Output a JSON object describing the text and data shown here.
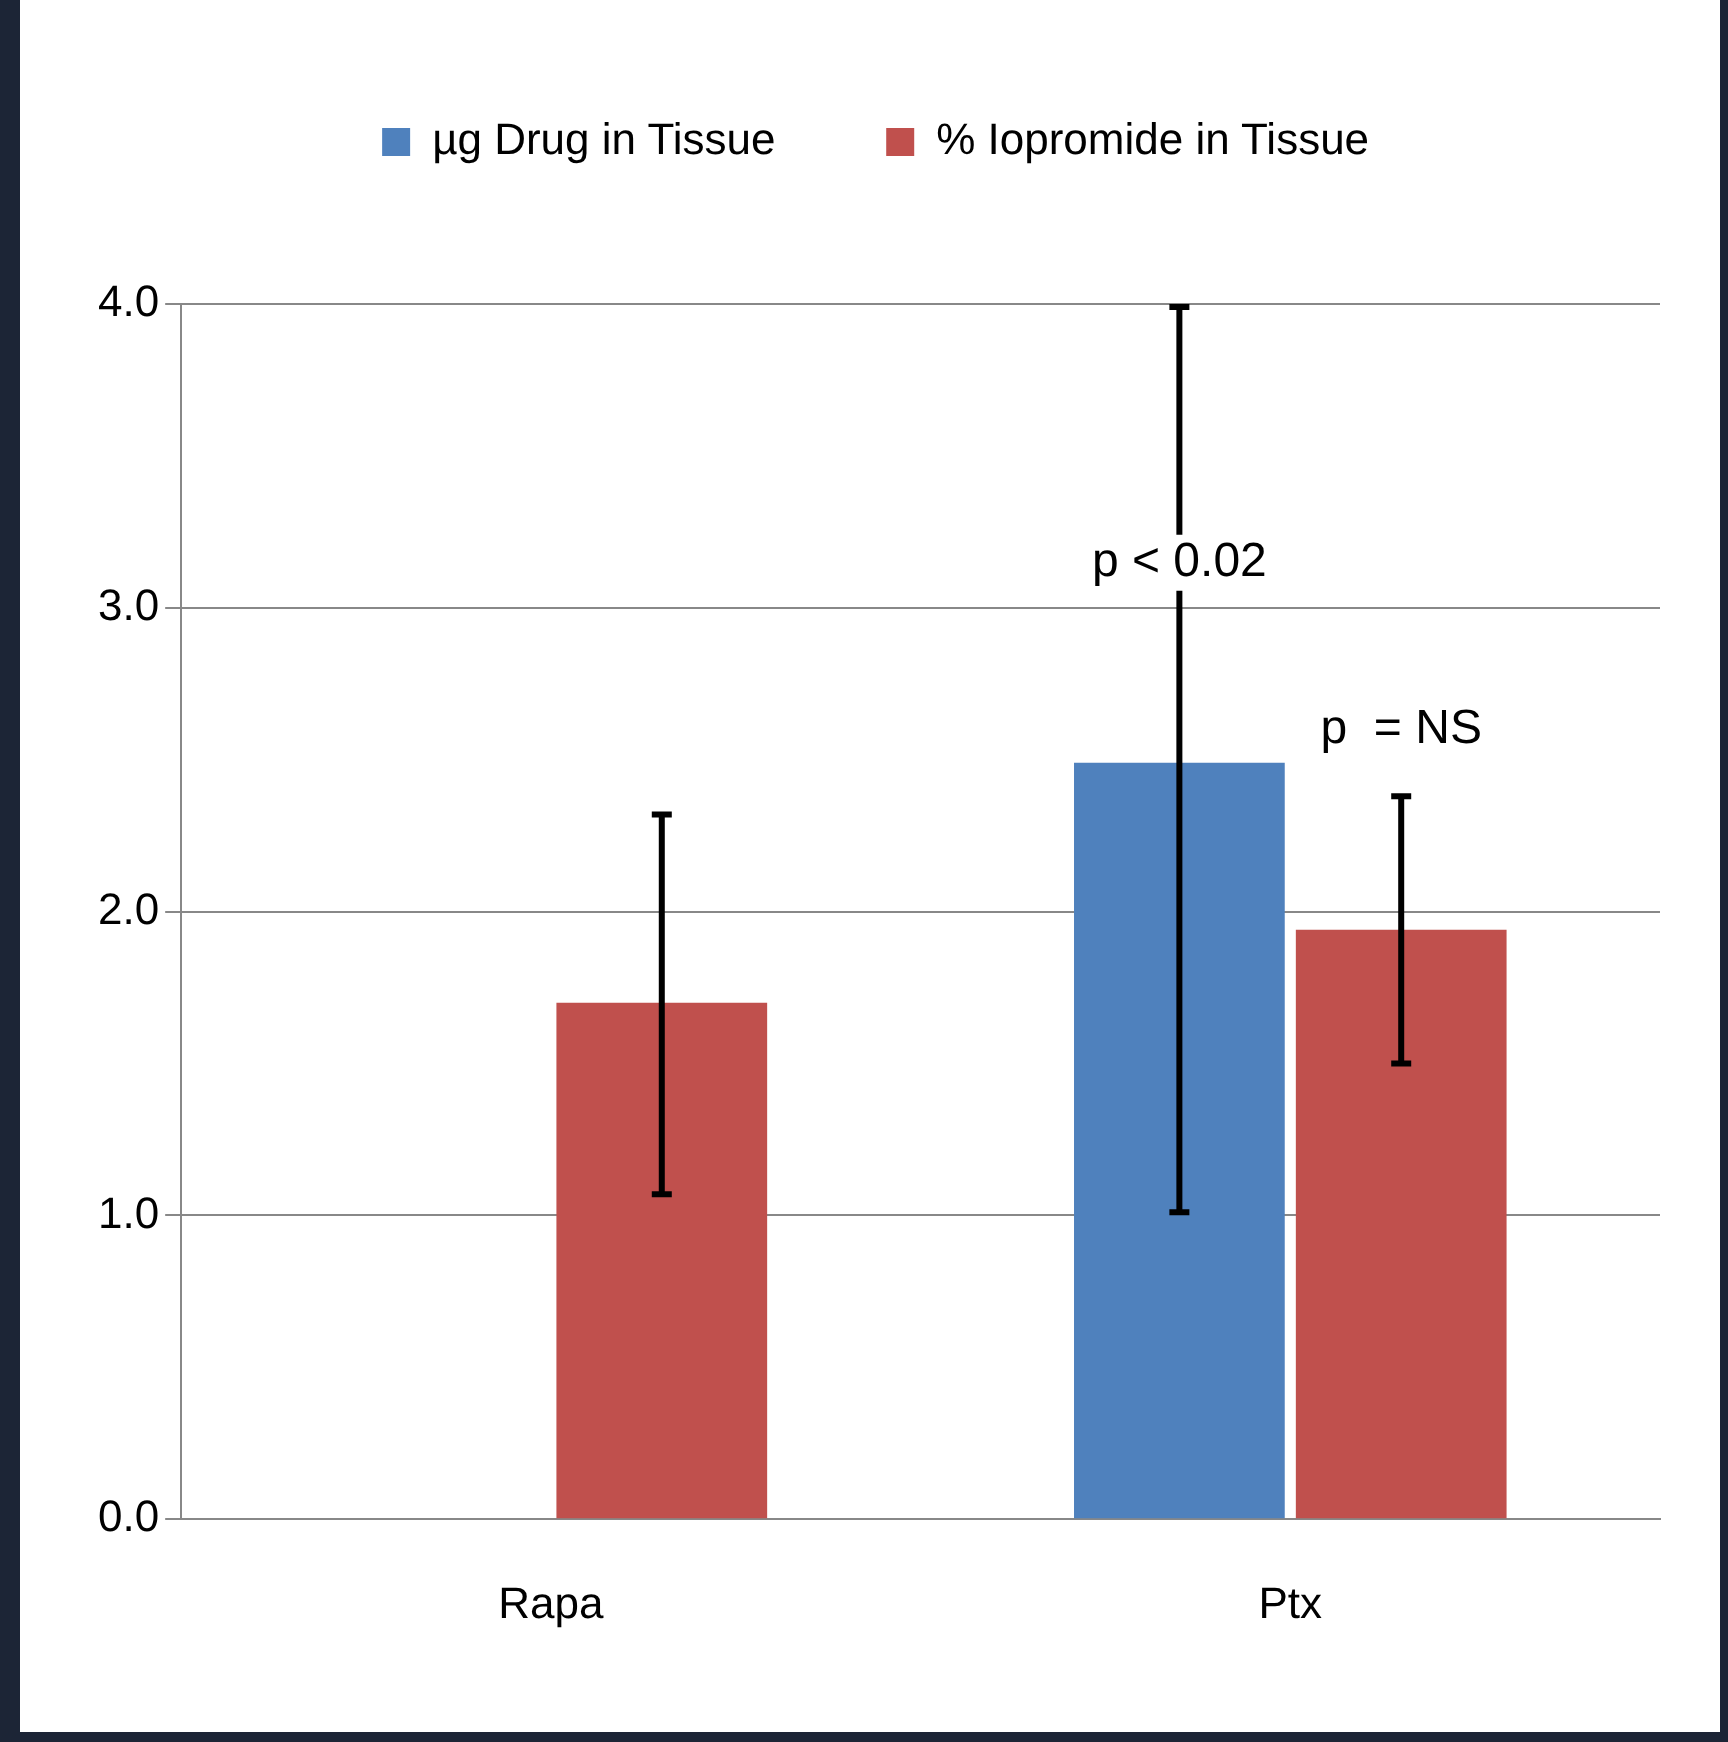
{
  "chart_data": {
    "type": "bar",
    "categories": [
      "Rapa",
      "Ptx"
    ],
    "series": [
      {
        "name": "µg Drug in Tissue",
        "color": "#4f81bd",
        "values": [
          null,
          2.49
        ],
        "errors": [
          null,
          [
            1.01,
            3.99
          ]
        ]
      },
      {
        "name": "% Iopromide in Tissue",
        "color": "#c0504d",
        "values": [
          1.7,
          1.94
        ],
        "errors": [
          [
            1.07,
            2.32
          ],
          [
            1.5,
            2.38
          ]
        ]
      }
    ],
    "ylim": [
      0,
      4
    ],
    "yticks": [
      {
        "value": 0,
        "label": "0.0"
      },
      {
        "value": 1,
        "label": "1.0"
      },
      {
        "value": 2,
        "label": "2.0"
      },
      {
        "value": 3,
        "label": "3.0"
      },
      {
        "value": 4,
        "label": "4.0"
      }
    ],
    "grid": "y",
    "legend": "top",
    "annotations": [
      "p < 0.02",
      "p  = NS"
    ]
  }
}
